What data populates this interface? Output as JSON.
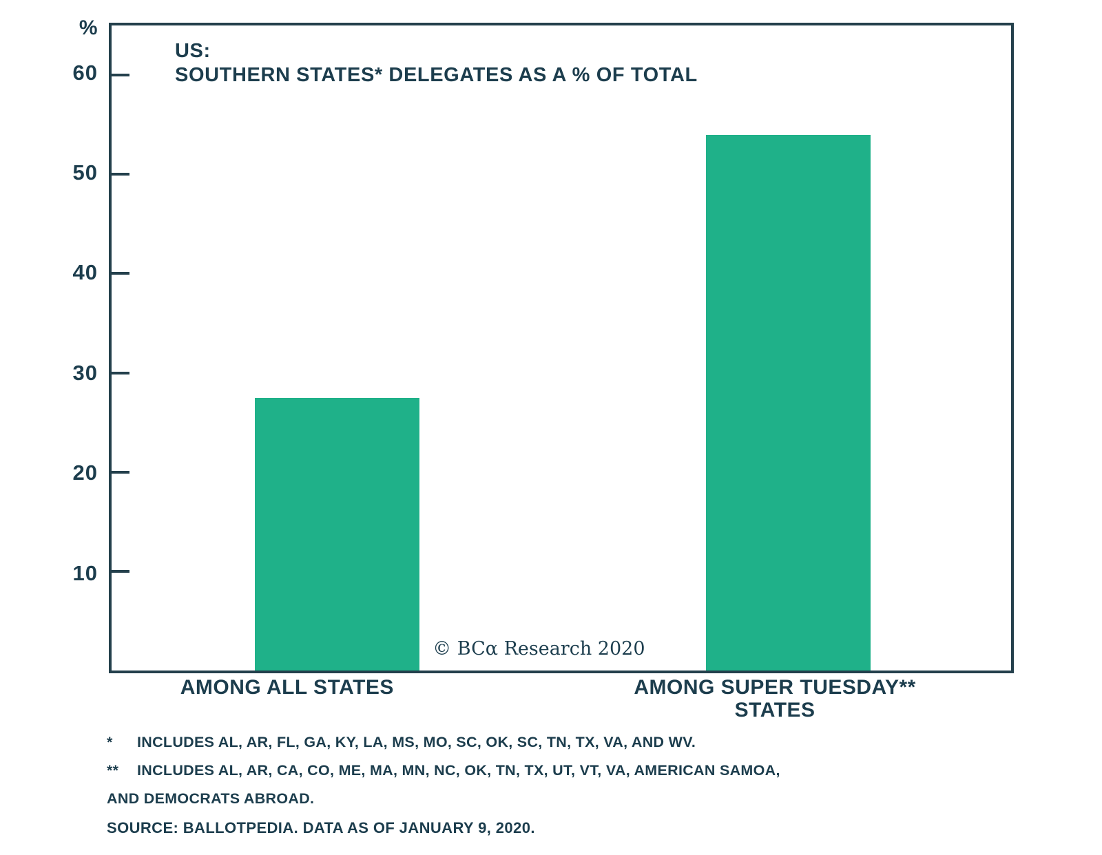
{
  "title": {
    "line1": "US:",
    "line2": "SOUTHERN STATES* DELEGATES AS A % OF TOTAL"
  },
  "watermark": "© BCα Research 2020",
  "chart_data": {
    "type": "bar",
    "title": "US: SOUTHERN STATES* DELEGATES AS A % OF TOTAL",
    "xlabel": "",
    "ylabel": "%",
    "categories": [
      "AMONG ALL STATES",
      "AMONG SUPER TUESDAY** STATES"
    ],
    "values": [
      27.5,
      54
    ],
    "yticks": [
      10,
      20,
      30,
      40,
      50,
      60
    ],
    "ylim": [
      0,
      65
    ],
    "grid": false,
    "legend": false,
    "bar_color": "#1fb189"
  },
  "x_labels": [
    {
      "line1": "AMONG ALL STATES",
      "line2": ""
    },
    {
      "line1": "AMONG SUPER TUESDAY**",
      "line2": "STATES"
    }
  ],
  "footnotes": [
    {
      "marker": "*",
      "text": "INCLUDES AL, AR, FL, GA, KY, LA, MS, MO, SC, OK, SC, TN, TX, VA, AND WV."
    },
    {
      "marker": "**",
      "text": "INCLUDES AL, AR, CA, CO, ME, MA, MN, NC, OK, TN, TX, UT, VT, VA, AMERICAN SAMOA,"
    },
    {
      "marker": "",
      "text": "AND DEMOCRATS ABROAD."
    }
  ],
  "source": "SOURCE: BALLOTPEDIA. DATA AS OF JANUARY 9, 2020.",
  "colors": {
    "bar": "#1fb189",
    "text": "#1c3d4d",
    "axis": "#24404c"
  }
}
